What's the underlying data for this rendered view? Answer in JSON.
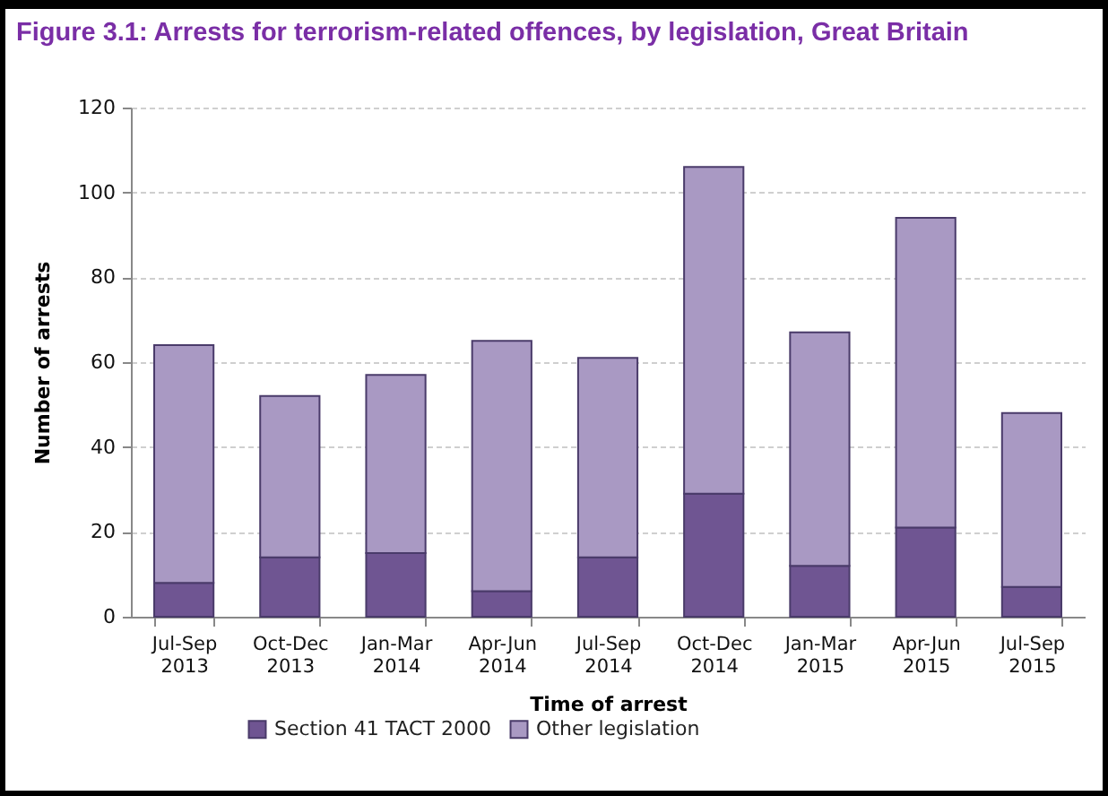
{
  "chart_data": {
    "type": "bar",
    "title": "Figure 3.1:  Arrests for terrorism-related offences, by legislation, Great Britain",
    "xlabel": "Time of arrest",
    "ylabel": "Number of arrests",
    "categories": [
      "Jul-Sep 2013",
      "Oct-Dec 2013",
      "Jan-Mar 2014",
      "Apr-Jun 2014",
      "Jul-Sep 2014",
      "Oct-Dec 2014",
      "Jan-Mar 2015",
      "Apr-Jun 2015",
      "Jul-Sep 2015"
    ],
    "series": [
      {
        "name": "Section 41 TACT 2000",
        "color": "#6f5592",
        "values": [
          8,
          14,
          15,
          6,
          14,
          29,
          12,
          21,
          7
        ]
      },
      {
        "name": "Other legislation",
        "color": "#a999c3",
        "values": [
          56,
          38,
          42,
          59,
          47,
          77,
          55,
          73,
          41
        ]
      }
    ],
    "stacked": true,
    "ylim": [
      0,
      120
    ],
    "yticks": [
      0,
      20,
      40,
      60,
      80,
      100,
      120
    ],
    "grid": "y",
    "legend": "bottom"
  }
}
